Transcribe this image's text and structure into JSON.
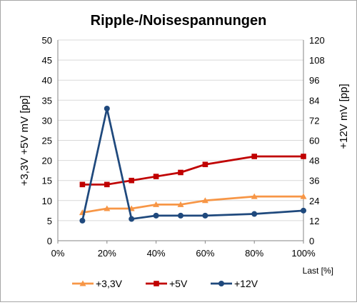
{
  "chart_data": {
    "type": "line",
    "title": "Ripple-/Noisespannungen",
    "xlabel": "Last [%]",
    "ylabel_left": "+3,3V +5V   mV [pp]",
    "ylabel_right": "+12V   mV [pp]",
    "x": [
      10,
      20,
      30,
      40,
      50,
      60,
      80,
      100
    ],
    "xlim": [
      0,
      100
    ],
    "xticks": [
      "0%",
      "20%",
      "40%",
      "60%",
      "80%",
      "100%"
    ],
    "ylim_left": [
      0,
      50
    ],
    "yticks_left": [
      "0",
      "5",
      "10",
      "15",
      "20",
      "25",
      "30",
      "35",
      "40",
      "45",
      "50"
    ],
    "ylim_right": [
      0,
      120
    ],
    "yticks_right": [
      "0",
      "12",
      "24",
      "36",
      "48",
      "60",
      "72",
      "84",
      "96",
      "108",
      "120"
    ],
    "grid": true,
    "legend_position": "bottom",
    "series": [
      {
        "name": "+3,3V",
        "axis": "left",
        "color": "#f79646",
        "marker": "triangle",
        "values": [
          7,
          8,
          8,
          9,
          9,
          10,
          11,
          11
        ]
      },
      {
        "name": "+5V",
        "axis": "left",
        "color": "#c00000",
        "marker": "square",
        "values": [
          14,
          14,
          15,
          16,
          17,
          19,
          21,
          21
        ]
      },
      {
        "name": "+12V",
        "axis": "right",
        "color": "#1f497d",
        "marker": "circle",
        "values": [
          12,
          79,
          13,
          15,
          15,
          15,
          16,
          18
        ]
      }
    ]
  }
}
